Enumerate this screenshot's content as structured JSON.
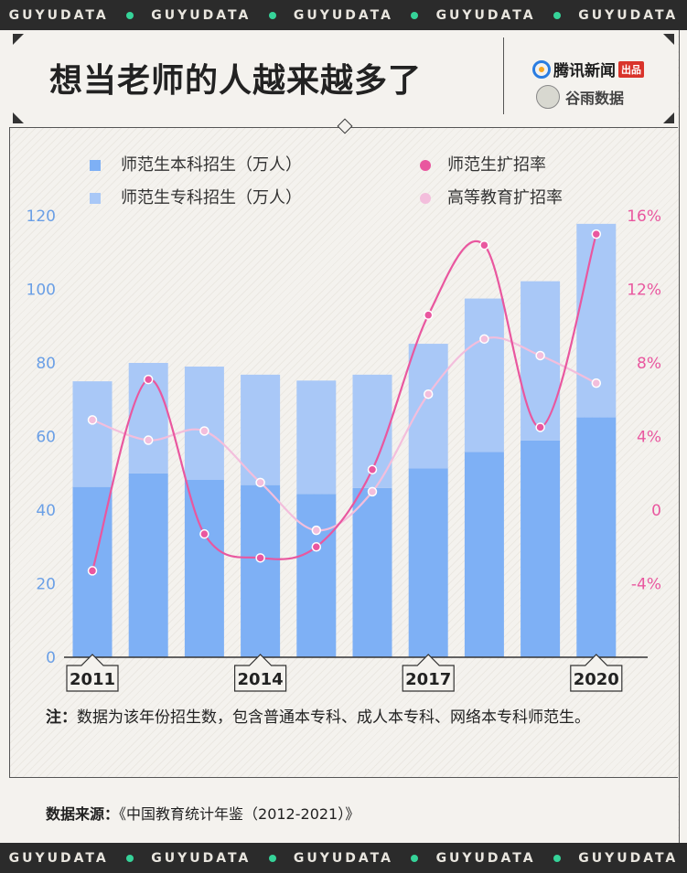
{
  "band_text": "GUYUDATA",
  "band_repeat": 5,
  "title": "想当老师的人越来越多了",
  "brand": {
    "primary": "腾讯新闻",
    "primary_tag": "出品",
    "secondary": "谷雨数据"
  },
  "legend": {
    "bar1": "师范生本科招生（万人）",
    "bar2": "师范生专科招生（万人）",
    "line1": "师范生扩招率",
    "line2": "高等教育扩招率"
  },
  "note_label": "注：",
  "note_text": "数据为该年份招生数，包含普通本专科、成人本专科、网络本专科师范生。",
  "source_label": "数据来源：",
  "source_text": "《中国教育统计年鉴（2012-2021）》",
  "colors": {
    "bar_bachelor": "#7eb0f5",
    "bar_college": "#a9c8f7",
    "line_normal": "#e9579f",
    "line_higher": "#f3bedc",
    "left_axis": "#6a9fe6",
    "right_axis": "#e9579f"
  },
  "chart_data": {
    "type": "bar",
    "stacked": true,
    "categories": [
      "2011",
      "2012",
      "2013",
      "2014",
      "2015",
      "2016",
      "2017",
      "2018",
      "2019",
      "2020"
    ],
    "x_tick_labels": [
      "2011",
      "2014",
      "2017",
      "2020"
    ],
    "x_tick_years": [
      "2011",
      "2014",
      "2017",
      "2020"
    ],
    "left_axis": {
      "ylim": [
        0,
        120
      ],
      "ticks": [
        "0",
        "20",
        "40",
        "60",
        "80",
        "100",
        "120"
      ]
    },
    "right_axis": {
      "ylim": [
        -8,
        16
      ],
      "tick_values": [
        -4,
        0,
        4,
        8,
        12,
        16
      ],
      "ticks": [
        "-4%",
        "0",
        "4%",
        "8%",
        "12%",
        "16%"
      ]
    },
    "series": [
      {
        "name": "师范生本科招生（万人）",
        "kind": "bar",
        "values": [
          46.3,
          50.0,
          48.2,
          46.8,
          44.4,
          46.0,
          51.3,
          55.8,
          58.9,
          65.2
        ]
      },
      {
        "name": "师范生专科招生（万人）",
        "kind": "bar",
        "values": [
          28.7,
          30.0,
          30.8,
          30.0,
          30.8,
          30.8,
          33.9,
          41.7,
          43.3,
          52.6
        ]
      },
      {
        "name": "师范生扩招率",
        "kind": "line",
        "axis": "right",
        "unit": "%",
        "values": [
          -3.3,
          7.1,
          -1.3,
          -2.6,
          -2.0,
          2.2,
          10.6,
          14.4,
          4.5,
          15.0
        ]
      },
      {
        "name": "高等教育扩招率",
        "kind": "line",
        "axis": "right",
        "unit": "%",
        "values": [
          4.9,
          3.8,
          4.3,
          1.5,
          -1.1,
          1.0,
          6.3,
          9.3,
          8.4,
          6.9
        ]
      }
    ]
  }
}
